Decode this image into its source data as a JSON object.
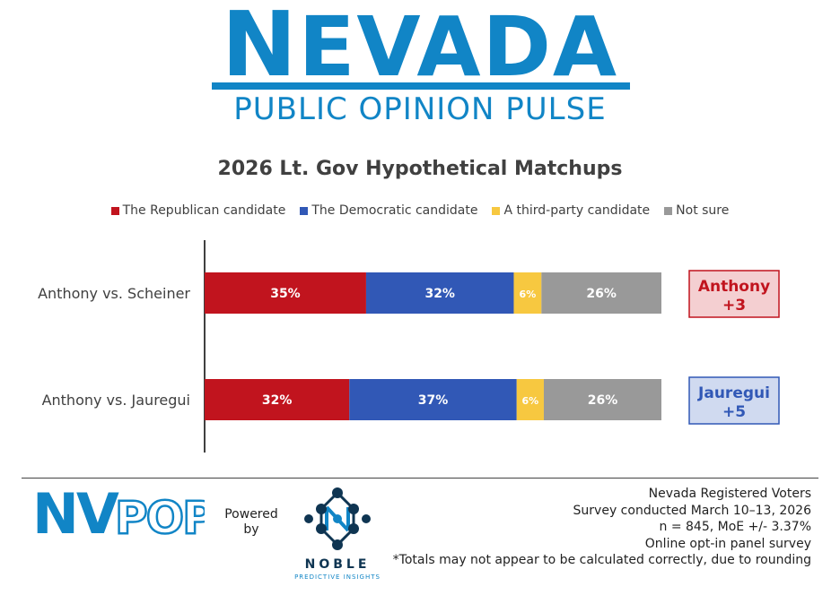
{
  "header": {
    "title_first": "N",
    "title_rest": "EVADA",
    "subtitle": "PUBLIC OPINION PULSE"
  },
  "chart_data": {
    "type": "bar",
    "orientation": "horizontal",
    "stacked": true,
    "title": "2026 Lt. Gov Hypothetical Matchups",
    "categories": [
      "Anthony vs. Scheiner",
      "Anthony vs. Jauregui"
    ],
    "series": [
      {
        "name": "The Republican candidate",
        "color": "#c1141e",
        "values": [
          35,
          32
        ],
        "labels": [
          "35%",
          "32%"
        ]
      },
      {
        "name": "The Democratic candidate",
        "color": "#3158b6",
        "values": [
          32,
          37
        ],
        "labels": [
          "32%",
          "37%"
        ]
      },
      {
        "name": "A third-party candidate",
        "color": "#f7c840",
        "values": [
          6,
          6
        ],
        "labels": [
          "6%",
          "6%"
        ]
      },
      {
        "name": "Not sure",
        "color": "#999999",
        "values": [
          26,
          26
        ],
        "labels": [
          "26%",
          "26%"
        ]
      }
    ],
    "legend_position": "top",
    "grid": false,
    "xlim": [
      0,
      100
    ],
    "margins": [
      {
        "line1": "Anthony",
        "line2": "+3",
        "text_color": "#c1141e",
        "fill": "#f4cfd1",
        "border": "#c1141e"
      },
      {
        "line1": "Jauregui",
        "line2": "+5",
        "text_color": "#3158b6",
        "fill": "#d0daf0",
        "border": "#3158b6"
      }
    ]
  },
  "footer": {
    "logo_text": "NVPOP",
    "powered_line1": "Powered",
    "powered_line2": "by",
    "noble_name": "NOBLE",
    "noble_tagline": "PREDICTIVE INSIGHTS",
    "notes": [
      "Nevada Registered Voters",
      "Survey conducted March 10–13, 2026",
      "n = 845, MoE +/- 3.37%",
      "Online opt-in panel survey",
      "*Totals may not appear to be calculated correctly, due to rounding"
    ]
  }
}
